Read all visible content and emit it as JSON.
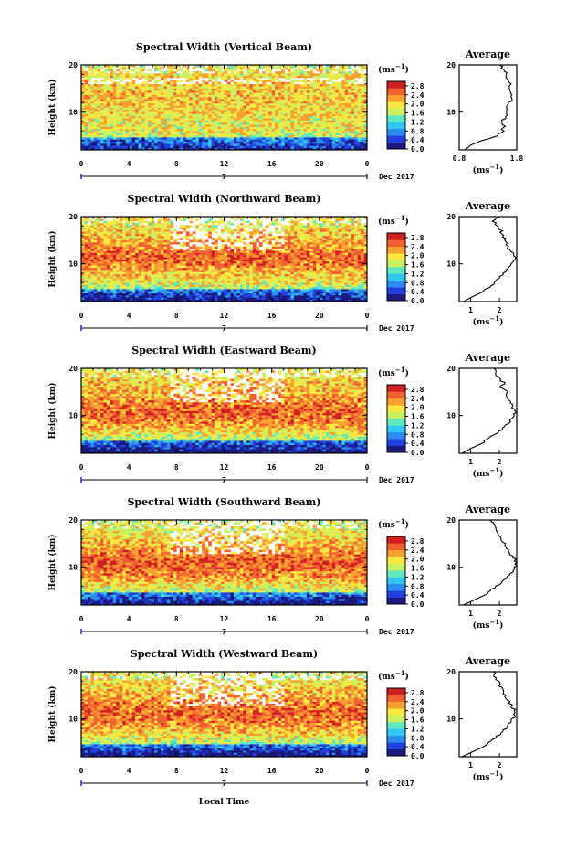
{
  "figure": {
    "xlabel": "Local Time",
    "month_label": "Dec 2017",
    "day_label": "7",
    "ylabel": "Height (km)",
    "unit_label": "(ms",
    "unit_exp": "−1",
    "avg_title": "Average",
    "avg_xlabel": "(ms",
    "avg_xlabel_exp": "−1",
    "colorbar_ticks": [
      "2.8",
      "2.4",
      "2.0",
      "1.6",
      "1.2",
      "0.8",
      "0.4",
      "0.0"
    ],
    "colors": [
      "#1a1a80",
      "#2040e0",
      "#2c8cf0",
      "#30c8f0",
      "#60e8c0",
      "#c8f060",
      "#f8e840",
      "#f8a030",
      "#f06030",
      "#d02020"
    ]
  },
  "chart_data": [
    {
      "type": "heatmap",
      "title": "Spectral Width (Vertical Beam)",
      "x_ticks": [
        "0",
        "4",
        "8",
        "12",
        "16",
        "20",
        "0"
      ],
      "xlim": [
        0,
        24
      ],
      "y_ticks": [
        "20",
        "10"
      ],
      "ylim": [
        2,
        20
      ],
      "clim": [
        0.0,
        3.0
      ],
      "avg_profile": {
        "x_ticks": [
          "0.8",
          "1.8"
        ],
        "xlim": [
          0.8,
          1.8
        ],
        "height": [
          2,
          3,
          4,
          5,
          6,
          7,
          8,
          9,
          10,
          11,
          12,
          13,
          14,
          15,
          16,
          17,
          18,
          19,
          20
        ],
        "value": [
          0.9,
          1.0,
          1.2,
          1.45,
          1.55,
          1.58,
          1.55,
          1.6,
          1.65,
          1.62,
          1.68,
          1.7,
          1.72,
          1.66,
          1.7,
          1.65,
          1.62,
          1.58,
          1.5
        ]
      }
    },
    {
      "type": "heatmap",
      "title": "Spectral Width (Northward Beam)",
      "x_ticks": [
        "0",
        "4",
        "8",
        "12",
        "16",
        "20",
        "0"
      ],
      "xlim": [
        0,
        24
      ],
      "y_ticks": [
        "20",
        "10"
      ],
      "ylim": [
        2,
        20
      ],
      "clim": [
        0.0,
        3.0
      ],
      "avg_profile": {
        "x_ticks": [
          "1",
          "2"
        ],
        "xlim": [
          0.6,
          2.6
        ],
        "height": [
          2,
          3,
          4,
          5,
          6,
          7,
          8,
          9,
          10,
          11,
          12,
          13,
          14,
          15,
          16,
          17,
          18,
          19,
          20
        ],
        "value": [
          0.75,
          1.05,
          1.4,
          1.65,
          1.85,
          2.0,
          2.15,
          2.3,
          2.45,
          2.55,
          2.5,
          2.35,
          2.25,
          2.2,
          2.1,
          2.05,
          1.9,
          1.8,
          2.0
        ]
      }
    },
    {
      "type": "heatmap",
      "title": "Spectral Width (Eastward Beam)",
      "x_ticks": [
        "0",
        "4",
        "8",
        "12",
        "16",
        "20",
        "0"
      ],
      "xlim": [
        0,
        24
      ],
      "y_ticks": [
        "20",
        "10"
      ],
      "ylim": [
        2,
        20
      ],
      "clim": [
        0.0,
        3.0
      ],
      "avg_profile": {
        "x_ticks": [
          "1",
          "2"
        ],
        "xlim": [
          0.6,
          2.6
        ],
        "height": [
          2,
          3,
          4,
          5,
          6,
          7,
          8,
          9,
          10,
          11,
          12,
          13,
          14,
          15,
          16,
          17,
          18,
          19,
          20
        ],
        "value": [
          0.7,
          1.0,
          1.35,
          1.6,
          1.85,
          2.05,
          2.25,
          2.4,
          2.5,
          2.55,
          2.45,
          2.35,
          2.2,
          2.25,
          2.05,
          2.15,
          1.95,
          1.9,
          1.8
        ]
      }
    },
    {
      "type": "heatmap",
      "title": "Spectral Width (Southward Beam)",
      "x_ticks": [
        "0",
        "4",
        "8",
        "12",
        "16",
        "20",
        "0"
      ],
      "xlim": [
        0,
        24
      ],
      "y_ticks": [
        "20",
        "10"
      ],
      "ylim": [
        2,
        20
      ],
      "clim": [
        0.0,
        3.0
      ],
      "avg_profile": {
        "x_ticks": [
          "1",
          "2"
        ],
        "xlim": [
          0.6,
          2.6
        ],
        "height": [
          2,
          3,
          4,
          5,
          6,
          7,
          8,
          9,
          10,
          11,
          12,
          13,
          14,
          15,
          16,
          17,
          18,
          19,
          20
        ],
        "value": [
          0.75,
          1.1,
          1.45,
          1.7,
          1.9,
          2.1,
          2.3,
          2.45,
          2.55,
          2.6,
          2.5,
          2.35,
          2.25,
          2.15,
          2.05,
          1.95,
          1.85,
          1.8,
          1.7
        ]
      }
    },
    {
      "type": "heatmap",
      "title": "Spectral Width (Westward Beam)",
      "x_ticks": [
        "0",
        "4",
        "8",
        "12",
        "16",
        "20",
        "0"
      ],
      "xlim": [
        0,
        24
      ],
      "y_ticks": [
        "20",
        "10"
      ],
      "ylim": [
        2,
        20
      ],
      "clim": [
        0.0,
        3.0
      ],
      "avg_profile": {
        "x_ticks": [
          "1",
          "2"
        ],
        "xlim": [
          0.6,
          2.6
        ],
        "height": [
          2,
          3,
          4,
          5,
          6,
          7,
          8,
          9,
          10,
          11,
          12,
          13,
          14,
          15,
          16,
          17,
          18,
          19,
          20
        ],
        "value": [
          0.7,
          1.05,
          1.4,
          1.65,
          1.85,
          2.05,
          2.2,
          2.35,
          2.45,
          2.55,
          2.5,
          2.4,
          2.3,
          2.2,
          2.1,
          2.0,
          1.95,
          1.85,
          1.8
        ]
      }
    }
  ]
}
